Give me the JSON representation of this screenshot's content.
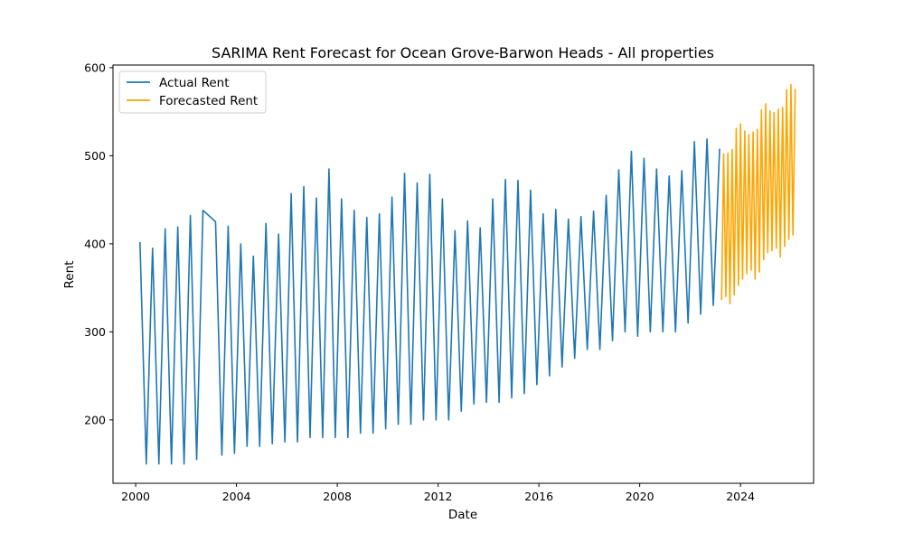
{
  "chart_data": {
    "type": "line",
    "title": "SARIMA Rent Forecast for Ocean Grove-Barwon Heads - All properties",
    "xlabel": "Date",
    "ylabel": "Rent",
    "xlim": [
      1999.1,
      2026.9
    ],
    "ylim": [
      128,
      603
    ],
    "x_ticks": [
      2000,
      2004,
      2008,
      2012,
      2016,
      2020,
      2024
    ],
    "x_tick_labels": [
      "2000",
      "2004",
      "2008",
      "2012",
      "2016",
      "2020",
      "2024"
    ],
    "y_ticks": [
      200,
      300,
      400,
      500,
      600
    ],
    "y_tick_labels": [
      "200",
      "300",
      "400",
      "500",
      "600"
    ],
    "grid": false,
    "legend_position": "top-left",
    "series": [
      {
        "name": "Actual Rent",
        "color": "#1f77b4",
        "x": [
          2000.17,
          2000.42,
          2000.67,
          2000.92,
          2001.17,
          2001.42,
          2001.67,
          2001.92,
          2002.17,
          2002.42,
          2002.67,
          2003.17,
          2003.42,
          2003.67,
          2003.92,
          2004.17,
          2004.42,
          2004.67,
          2004.92,
          2005.17,
          2005.42,
          2005.67,
          2005.92,
          2006.17,
          2006.42,
          2006.67,
          2006.92,
          2007.17,
          2007.42,
          2007.67,
          2007.92,
          2008.17,
          2008.42,
          2008.67,
          2008.92,
          2009.17,
          2009.42,
          2009.67,
          2009.92,
          2010.17,
          2010.42,
          2010.67,
          2010.92,
          2011.17,
          2011.42,
          2011.67,
          2011.92,
          2012.17,
          2012.42,
          2012.67,
          2012.92,
          2013.17,
          2013.42,
          2013.67,
          2013.92,
          2014.17,
          2014.42,
          2014.67,
          2014.92,
          2015.17,
          2015.42,
          2015.67,
          2015.92,
          2016.17,
          2016.42,
          2016.67,
          2016.92,
          2017.17,
          2017.42,
          2017.67,
          2017.92,
          2018.17,
          2018.42,
          2018.67,
          2018.92,
          2019.17,
          2019.42,
          2019.67,
          2019.92,
          2020.17,
          2020.42,
          2020.67,
          2020.92,
          2021.17,
          2021.42,
          2021.67,
          2021.92,
          2022.17,
          2022.42,
          2022.67,
          2022.92,
          2023.17
        ],
        "values": [
          402,
          150,
          395,
          150,
          417,
          150,
          419,
          150,
          432,
          155,
          438,
          425,
          160,
          420,
          162,
          400,
          170,
          386,
          170,
          423,
          173,
          411,
          175,
          457,
          175,
          465,
          180,
          452,
          180,
          485,
          180,
          451,
          180,
          438,
          185,
          430,
          185,
          434,
          190,
          453,
          195,
          480,
          195,
          469,
          200,
          479,
          200,
          451,
          200,
          415,
          210,
          426,
          218,
          418,
          220,
          451,
          220,
          473,
          225,
          472,
          230,
          461,
          240,
          434,
          250,
          439,
          260,
          428,
          270,
          431,
          280,
          437,
          280,
          455,
          290,
          484,
          300,
          505,
          295,
          497,
          300,
          485,
          300,
          477,
          300,
          483,
          310,
          516,
          320,
          519,
          330,
          508
        ]
      },
      {
        "name": "Forecasted Rent",
        "color": "#ffa500",
        "x": [
          2023.25,
          2023.33,
          2023.42,
          2023.5,
          2023.58,
          2023.67,
          2023.75,
          2023.83,
          2023.92,
          2024.0,
          2024.08,
          2024.17,
          2024.25,
          2024.33,
          2024.42,
          2024.5,
          2024.58,
          2024.67,
          2024.75,
          2024.83,
          2024.92,
          2025.0,
          2025.08,
          2025.17,
          2025.25,
          2025.33,
          2025.42,
          2025.5,
          2025.58,
          2025.67,
          2025.75,
          2025.83,
          2025.92,
          2026.0,
          2026.08,
          2026.17
        ],
        "values": [
          336,
          502,
          340,
          503,
          332,
          507,
          342,
          531,
          353,
          536,
          360,
          528,
          366,
          524,
          370,
          527,
          360,
          530,
          368,
          552,
          382,
          559,
          390,
          551,
          392,
          549,
          395,
          553,
          385,
          555,
          397,
          575,
          405,
          581,
          410,
          576
        ]
      }
    ]
  }
}
